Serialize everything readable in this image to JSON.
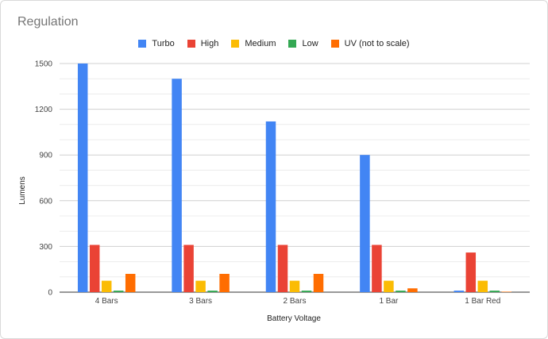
{
  "chart_data": {
    "type": "bar",
    "title": "Regulation",
    "xlabel": "Battery Voltage",
    "ylabel": "Lumens",
    "ylim": [
      0,
      1500
    ],
    "yticks": [
      0,
      300,
      600,
      900,
      1200,
      1500
    ],
    "grid": true,
    "legend_position": "top",
    "categories": [
      "4 Bars",
      "3 Bars",
      "2 Bars",
      "1 Bar",
      "1 Bar Red"
    ],
    "series": [
      {
        "name": "Turbo",
        "color": "#4285f4",
        "values": [
          1500,
          1400,
          1120,
          900,
          10
        ]
      },
      {
        "name": "High",
        "color": "#ea4335",
        "values": [
          310,
          310,
          310,
          310,
          260
        ]
      },
      {
        "name": "Medium",
        "color": "#fbbc04",
        "values": [
          75,
          75,
          75,
          75,
          75
        ]
      },
      {
        "name": "Low",
        "color": "#34a853",
        "values": [
          10,
          10,
          10,
          10,
          10
        ]
      },
      {
        "name": "UV (not to scale)",
        "color": "#ff6d01",
        "values": [
          120,
          120,
          120,
          25,
          3
        ]
      }
    ]
  }
}
